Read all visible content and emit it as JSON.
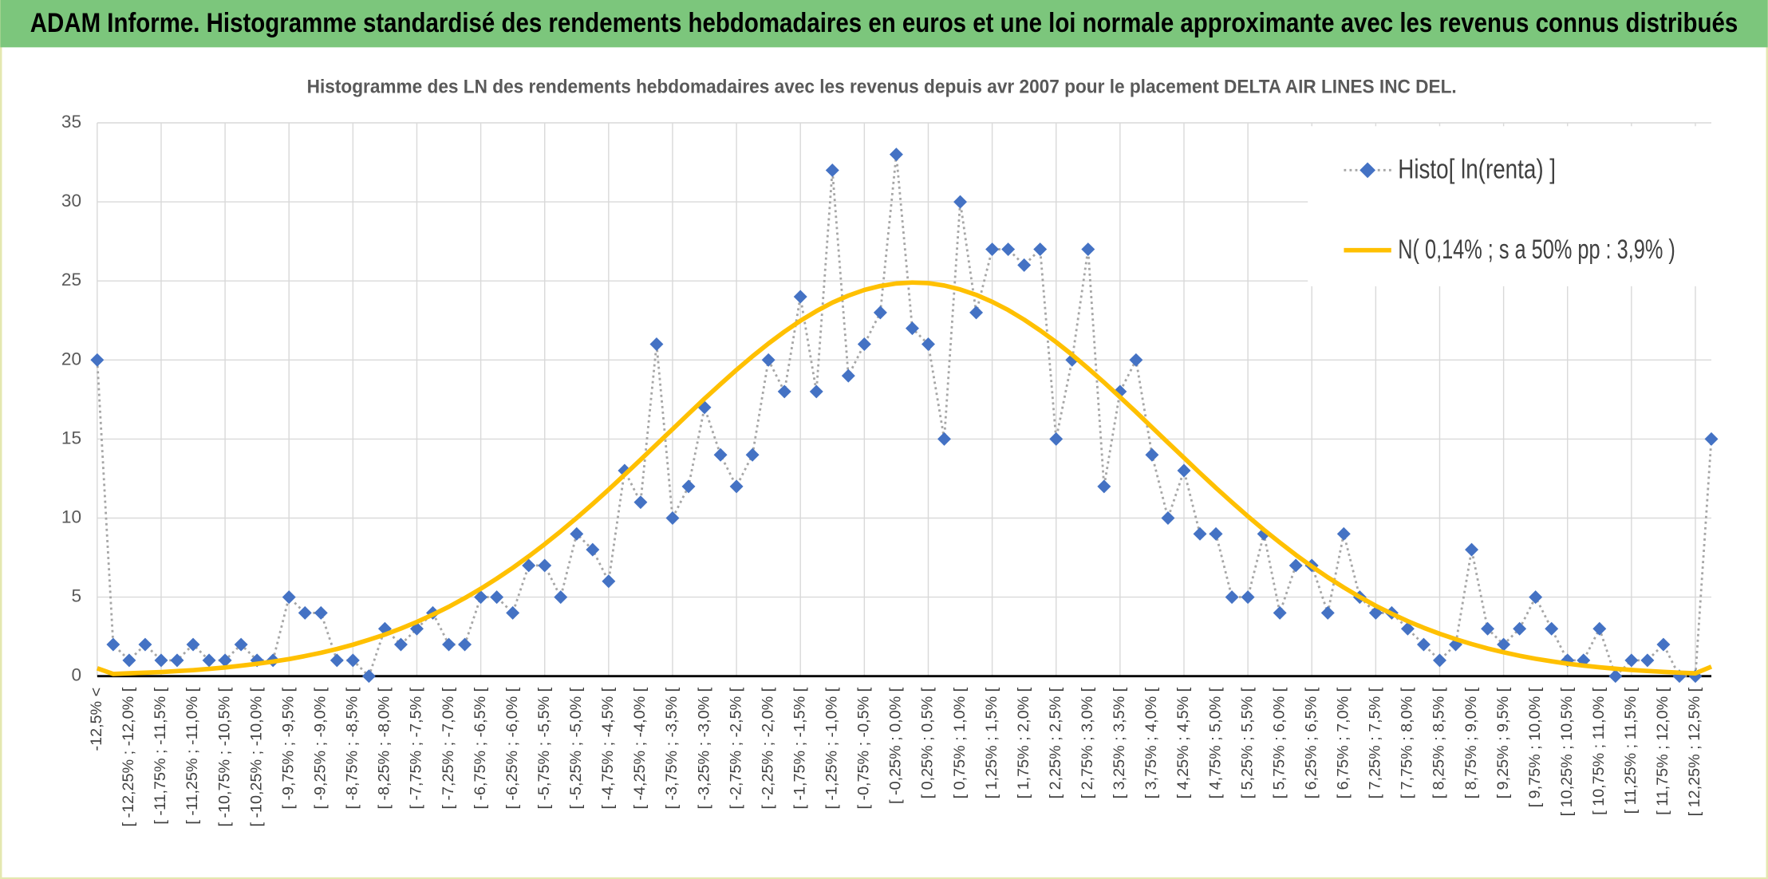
{
  "chart_data": {
    "type": "line",
    "title": "ADAM Informe. Histogramme standardisé des rendements hebdomadaires en euros et une loi normale approximante avec les revenus connus distribués",
    "subtitle": "Histogramme des LN des rendements hebdomadaires avec les revenus depuis avr 2007 pour le placement DELTA  AIR LINES INC DEL.",
    "categories": [
      "-12,5% <",
      null,
      "[ -12,25% ; -12,0% [",
      null,
      "[ -11,75% ; -11,5% [",
      null,
      "[ -11,25% ; -11,0% [",
      null,
      "[ -10,75% ; -10,5% [",
      null,
      "[ -10,25% ; -10,0% [",
      null,
      "[ -9,75% ; -9,5% [",
      null,
      "[ -9,25% ; -9,0% [",
      null,
      "[ -8,75% ; -8,5% [",
      null,
      "[ -8,25% ; -8,0% [",
      null,
      "[ -7,75% ; -7,5% [",
      null,
      "[ -7,25% ; -7,0% [",
      null,
      "[ -6,75% ; -6,5% [",
      null,
      "[ -6,25% ; -6,0% [",
      null,
      "[ -5,75% ; -5,5% [",
      null,
      "[ -5,25% ; -5,0% [",
      null,
      "[ -4,75% ; -4,5% [",
      null,
      "[ -4,25% ; -4,0% [",
      null,
      "[ -3,75% ; -3,5% [",
      null,
      "[ -3,25% ; -3,0% [",
      null,
      "[ -2,75% ; -2,5% [",
      null,
      "[ -2,25% ; -2,0% [",
      null,
      "[ -1,75% ; -1,5% [",
      null,
      "[ -1,25% ; -1,0% [",
      null,
      "[ -0,75% ; -0,5% [",
      null,
      "[ -0,25% ; 0,0% [",
      null,
      "[ 0,25% ; 0,5% [",
      null,
      "[ 0,75% ; 1,0% [",
      null,
      "[ 1,25% ; 1,5% [",
      null,
      "[ 1,75% ; 2,0% [",
      null,
      "[ 2,25% ; 2,5% [",
      null,
      "[ 2,75% ; 3,0% [",
      null,
      "[ 3,25% ; 3,5% [",
      null,
      "[ 3,75% ; 4,0% [",
      null,
      "[ 4,25% ; 4,5% [",
      null,
      "[ 4,75% ; 5,0% [",
      null,
      "[ 5,25% ; 5,5% [",
      null,
      "[ 5,75% ; 6,0% [",
      null,
      "[ 6,25% ; 6,5% [",
      null,
      "[ 6,75% ; 7,0% [",
      null,
      "[ 7,25% ; 7,5% [",
      null,
      "[ 7,75% ; 8,0% [",
      null,
      "[ 8,25% ; 8,5% [",
      null,
      "[ 8,75% ; 9,0% [",
      null,
      "[ 9,25% ; 9,5% [",
      null,
      "[ 9,75% ; 10,0% [",
      null,
      "[ 10,25% ; 10,5% [",
      null,
      "[ 10,75% ; 11,0% [",
      null,
      "[ 11,25% ; 11,5% [",
      null,
      "[ 11,75% ; 12,0% [",
      null,
      "[ 12,25% ; 12,5% [",
      null
    ],
    "series": [
      {
        "name": "Histo[ ln(renta) ]",
        "color": "#4472c4",
        "line_color": "#a6a6a6",
        "marker": "diamond",
        "linestyle": "dotted",
        "values": [
          20,
          2,
          1,
          2,
          1,
          1,
          2,
          1,
          1,
          2,
          1,
          1,
          5,
          4,
          4,
          1,
          1,
          0,
          3,
          2,
          3,
          4,
          2,
          2,
          5,
          5,
          4,
          7,
          7,
          5,
          9,
          8,
          6,
          13,
          11,
          21,
          10,
          12,
          17,
          14,
          12,
          14,
          20,
          18,
          24,
          18,
          32,
          19,
          21,
          23,
          33,
          22,
          21,
          15,
          30,
          23,
          27,
          27,
          26,
          27,
          15,
          20,
          27,
          12,
          18,
          20,
          14,
          10,
          13,
          9,
          9,
          5,
          5,
          9,
          4,
          7,
          7,
          4,
          9,
          5,
          4,
          4,
          3,
          2,
          1,
          2,
          8,
          3,
          2,
          3,
          5,
          3,
          1,
          1,
          3,
          0,
          1,
          1,
          2,
          0,
          0,
          15
        ]
      },
      {
        "name": "N( 0,14% ; s a 50% pp : 3,9% )",
        "color": "#ffc000",
        "marker": null,
        "linestyle": "solid",
        "values": [
          0.5,
          0.14,
          0.18,
          0.22,
          0.26,
          0.32,
          0.38,
          0.46,
          0.55,
          0.66,
          0.78,
          0.92,
          1.08,
          1.27,
          1.48,
          1.72,
          1.99,
          2.3,
          2.63,
          3.01,
          3.43,
          3.89,
          4.39,
          4.94,
          5.53,
          6.17,
          6.85,
          7.58,
          8.35,
          9.16,
          10.01,
          10.89,
          11.8,
          12.74,
          13.69,
          14.66,
          15.62,
          16.59,
          17.55,
          18.47,
          19.37,
          20.23,
          21.04,
          21.79,
          22.48,
          23.09,
          23.63,
          24.07,
          24.43,
          24.68,
          24.84,
          24.9,
          24.86,
          24.71,
          24.46,
          24.12,
          23.68,
          23.16,
          22.55,
          21.87,
          21.13,
          20.33,
          19.47,
          18.58,
          17.65,
          16.71,
          15.74,
          14.77,
          13.81,
          12.85,
          11.91,
          11.0,
          10.11,
          9.26,
          8.45,
          7.67,
          6.94,
          6.25,
          5.61,
          5.01,
          4.45,
          3.95,
          3.48,
          3.06,
          2.68,
          2.34,
          2.03,
          1.75,
          1.51,
          1.29,
          1.1,
          0.94,
          0.79,
          0.67,
          0.56,
          0.47,
          0.39,
          0.33,
          0.27,
          0.22,
          0.18,
          0.6
        ]
      }
    ],
    "ylim": [
      0,
      35
    ],
    "yticks": [
      0,
      5,
      10,
      15,
      20,
      25,
      30,
      35
    ],
    "grid": true,
    "legend": "upper right"
  }
}
